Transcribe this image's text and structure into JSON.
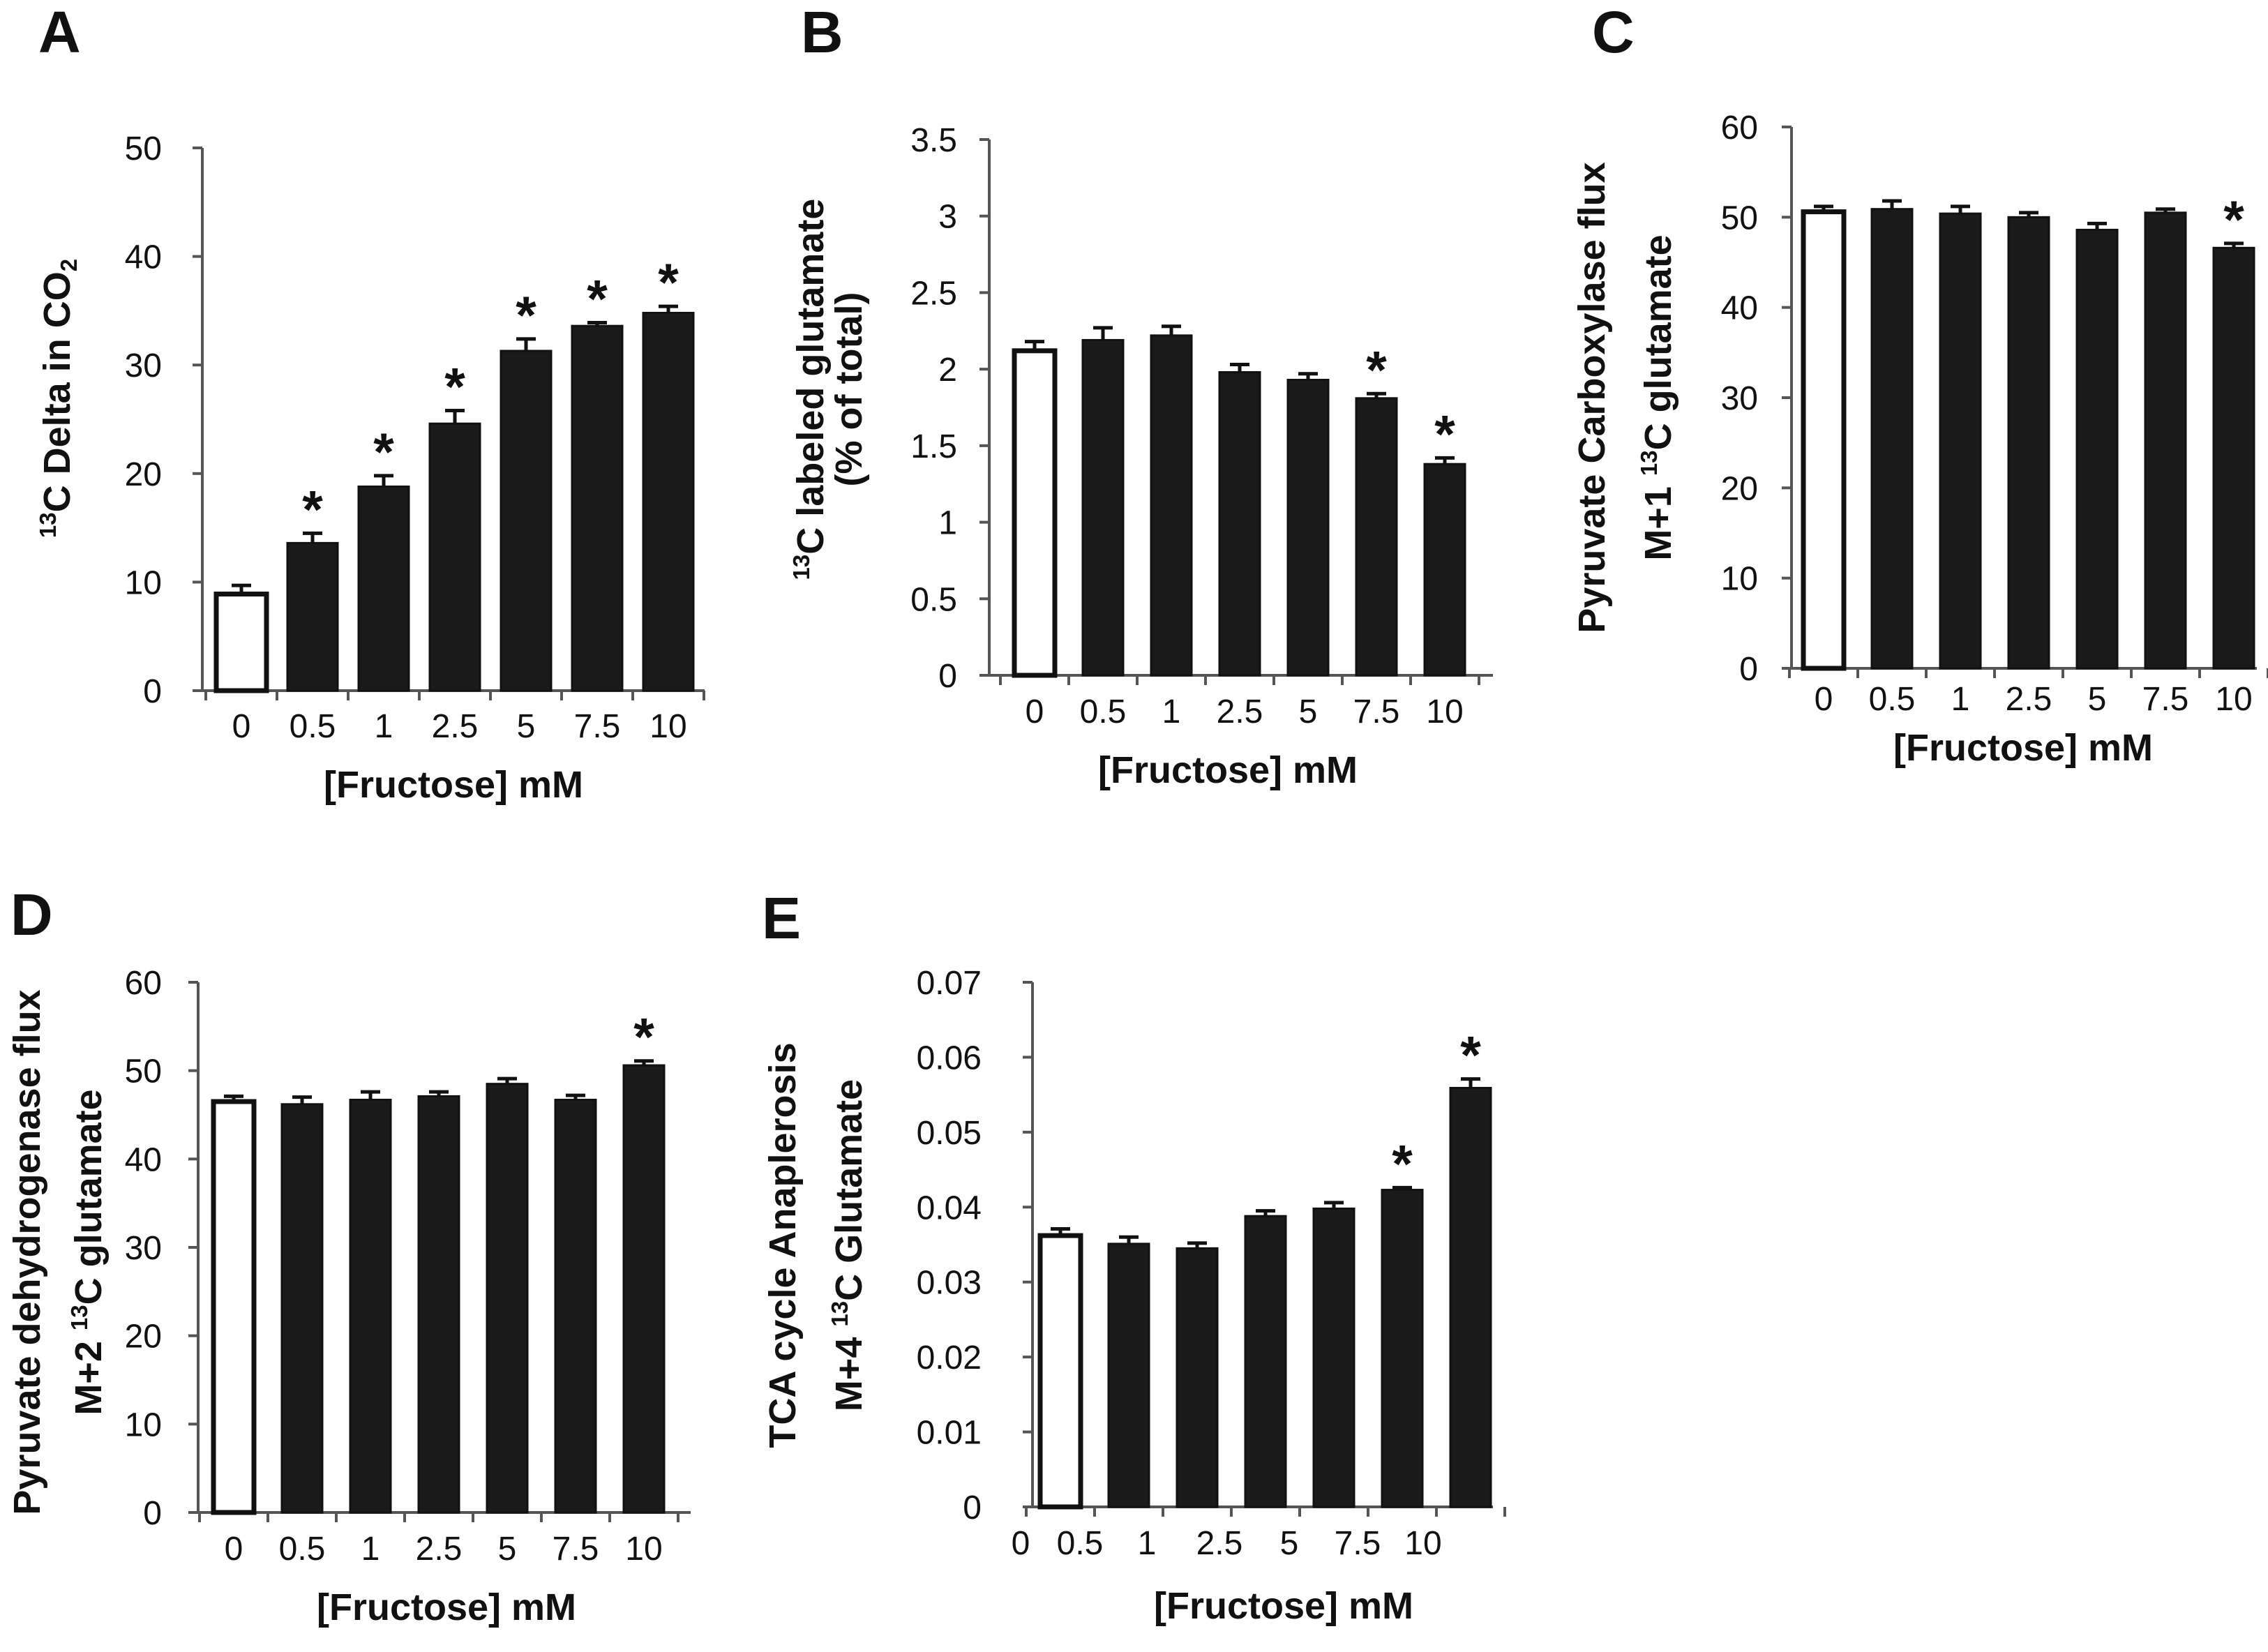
{
  "chart_data": [
    {
      "type": "bar",
      "panel": "A",
      "categories": [
        "0",
        "0.5",
        "1",
        "2.5",
        "5",
        "7.5",
        "10"
      ],
      "values": [
        8.9,
        13.6,
        18.8,
        24.6,
        31.3,
        33.6,
        34.8
      ],
      "errors": [
        0.8,
        0.9,
        1.0,
        1.2,
        1.1,
        0.3,
        0.6
      ],
      "significant": [
        false,
        true,
        true,
        true,
        true,
        true,
        true
      ],
      "bar_colors": [
        "#ffffff",
        "#1a1a1a",
        "#1a1a1a",
        "#1a1a1a",
        "#1a1a1a",
        "#1a1a1a",
        "#1a1a1a"
      ],
      "ylabel": [
        "{13}C Delta  in CO{_2}"
      ],
      "xlabel": "[Fructose] mM",
      "ylim": [
        0,
        50
      ],
      "yticks": [
        "0",
        "10",
        "20",
        "30",
        "40",
        "50"
      ],
      "marker": "*"
    },
    {
      "type": "bar",
      "panel": "B",
      "categories": [
        "0",
        "0.5",
        "1",
        "2.5",
        "5",
        "7.5",
        "10"
      ],
      "values": [
        2.12,
        2.19,
        2.22,
        1.98,
        1.93,
        1.81,
        1.38
      ],
      "errors": [
        0.06,
        0.08,
        0.06,
        0.05,
        0.04,
        0.03,
        0.04
      ],
      "significant": [
        false,
        false,
        false,
        false,
        false,
        true,
        true
      ],
      "bar_colors": [
        "#ffffff",
        "#1a1a1a",
        "#1a1a1a",
        "#1a1a1a",
        "#1a1a1a",
        "#1a1a1a",
        "#1a1a1a"
      ],
      "ylabel": [
        "{13}C labeled glutamate",
        "(% of total)"
      ],
      "xlabel": "[Fructose] mM",
      "ylim": [
        0,
        3.5
      ],
      "yticks": [
        "0",
        "0.5",
        "1",
        "1.5",
        "2",
        "2.5",
        "3",
        "3.5"
      ],
      "marker": "*"
    },
    {
      "type": "bar",
      "panel": "C",
      "categories": [
        "0",
        "0.5",
        "1",
        "2.5",
        "5",
        "7.5",
        "10"
      ],
      "values": [
        50.6,
        50.9,
        50.4,
        50.0,
        48.6,
        50.5,
        46.6
      ],
      "errors": [
        0.6,
        0.9,
        0.8,
        0.5,
        0.7,
        0.4,
        0.5
      ],
      "significant": [
        false,
        false,
        false,
        false,
        false,
        false,
        true
      ],
      "bar_colors": [
        "#ffffff",
        "#1a1a1a",
        "#1a1a1a",
        "#1a1a1a",
        "#1a1a1a",
        "#1a1a1a",
        "#1a1a1a"
      ],
      "ylabel": [
        "Pyruvate Carboxylase flux",
        "M+1 {13}C glutamate"
      ],
      "xlabel": "[Fructose] mM",
      "ylim": [
        0,
        60
      ],
      "yticks": [
        "0",
        "10",
        "20",
        "30",
        "40",
        "50",
        "60"
      ],
      "marker": "*"
    },
    {
      "type": "bar",
      "panel": "D",
      "categories": [
        "0",
        "0.5",
        "1",
        "2.5",
        "5",
        "7.5",
        "10"
      ],
      "values": [
        46.5,
        46.2,
        46.7,
        47.1,
        48.5,
        46.7,
        50.6
      ],
      "errors": [
        0.6,
        0.8,
        0.9,
        0.5,
        0.6,
        0.5,
        0.5
      ],
      "significant": [
        false,
        false,
        false,
        false,
        false,
        false,
        true
      ],
      "bar_colors": [
        "#ffffff",
        "#1a1a1a",
        "#1a1a1a",
        "#1a1a1a",
        "#1a1a1a",
        "#1a1a1a",
        "#1a1a1a"
      ],
      "ylabel": [
        "Pyruvate dehydrogenase  flux",
        "M+2 {13}C glutamate"
      ],
      "xlabel": "[Fructose] mM",
      "ylim": [
        0,
        60
      ],
      "yticks": [
        "0",
        "10",
        "20",
        "30",
        "40",
        "50",
        "60"
      ],
      "marker": "*"
    },
    {
      "type": "bar",
      "panel": "E",
      "categories": [
        "0",
        "0.5",
        "1",
        "2.5",
        "5",
        "7.5",
        "10"
      ],
      "values": [
        0.0362,
        0.0351,
        0.0345,
        0.0388,
        0.0398,
        0.0423,
        0.0559
      ],
      "errors": [
        0.0009,
        0.0009,
        0.0007,
        0.0007,
        0.0008,
        0.0003,
        0.0012
      ],
      "significant": [
        false,
        false,
        false,
        false,
        false,
        true,
        true
      ],
      "bar_colors": [
        "#ffffff",
        "#1a1a1a",
        "#1a1a1a",
        "#1a1a1a",
        "#1a1a1a",
        "#1a1a1a",
        "#1a1a1a"
      ],
      "ylabel": [
        "TCA cycle Anaplerosis",
        "M+4 {13}C Glutamate"
      ],
      "xlabel": "[Fructose] mM",
      "ylim": [
        0,
        0.07
      ],
      "yticks": [
        "0",
        "0.01",
        "0.02",
        "0.03",
        "0.04",
        "0.05",
        "0.06",
        "0.07"
      ],
      "marker": "*"
    }
  ]
}
